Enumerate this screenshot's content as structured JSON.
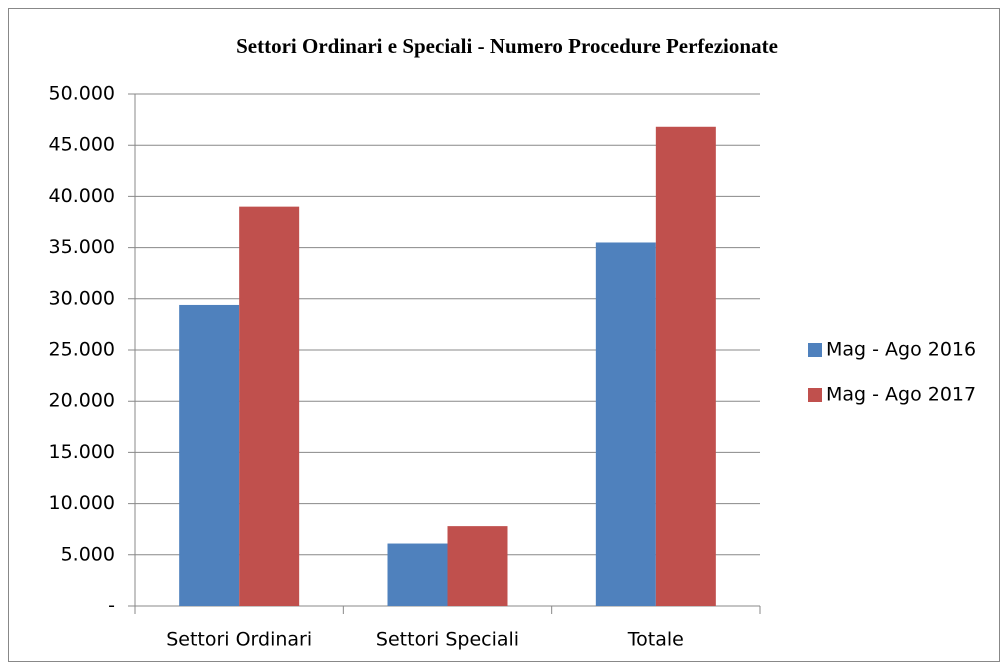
{
  "chart_data": {
    "type": "bar",
    "title": "Settori Ordinari e Speciali - Numero Procedure Perfezionate",
    "categories": [
      "Settori Ordinari",
      "Settori Speciali",
      "Totale"
    ],
    "series": [
      {
        "name": "Mag - Ago 2016",
        "color": "#4f81bd",
        "values": [
          29400,
          6100,
          35500
        ]
      },
      {
        "name": "Mag - Ago 2017",
        "color": "#c0504d",
        "values": [
          39000,
          7800,
          46800
        ]
      }
    ],
    "ylim": [
      0,
      50000
    ],
    "yticks": [
      {
        "value": 0,
        "label": "-"
      },
      {
        "value": 5000,
        "label": "5.000"
      },
      {
        "value": 10000,
        "label": "10.000"
      },
      {
        "value": 15000,
        "label": "15.000"
      },
      {
        "value": 20000,
        "label": "20.000"
      },
      {
        "value": 25000,
        "label": "25.000"
      },
      {
        "value": 30000,
        "label": "30.000"
      },
      {
        "value": 35000,
        "label": "35.000"
      },
      {
        "value": 40000,
        "label": "40.000"
      },
      {
        "value": 45000,
        "label": "45.000"
      },
      {
        "value": 50000,
        "label": "50.000"
      }
    ],
    "grid": true,
    "legend": "right"
  }
}
